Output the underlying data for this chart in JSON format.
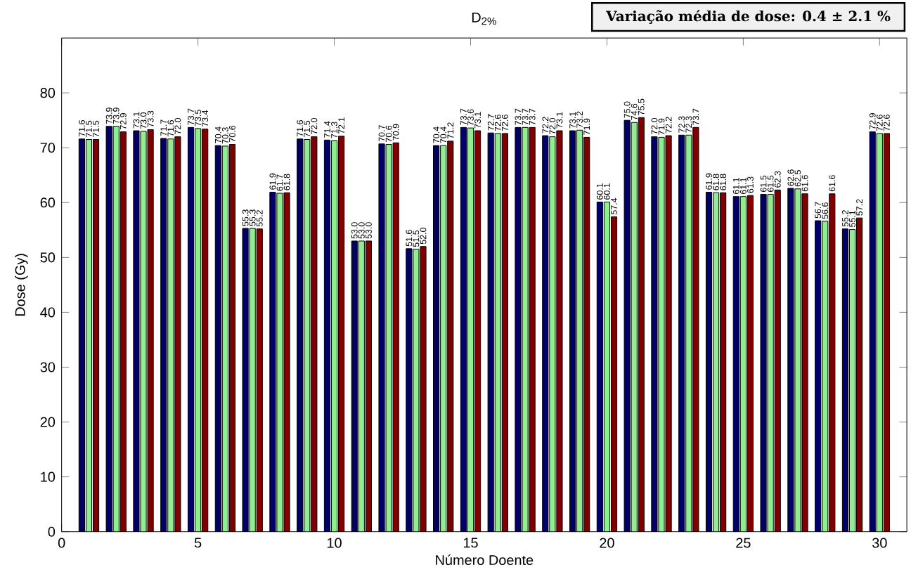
{
  "chart_data": {
    "type": "bar",
    "title": "D$_{2%}$",
    "xlabel": "Número Doente",
    "ylabel": "Dose (Gy)",
    "x": [
      1,
      2,
      3,
      4,
      5,
      6,
      7,
      8,
      9,
      10,
      11,
      12,
      13,
      14,
      15,
      16,
      17,
      18,
      19,
      20,
      21,
      22,
      23,
      24,
      25,
      26,
      27,
      28,
      29,
      30
    ],
    "series": [
      {
        "color": "#000066",
        "values": [
          71.6,
          73.9,
          73.1,
          71.7,
          73.7,
          70.4,
          55.3,
          61.9,
          71.6,
          71.4,
          53.0,
          70.7,
          51.6,
          70.4,
          73.7,
          72.7,
          73.7,
          72.2,
          73.1,
          60.1,
          75.0,
          72.0,
          72.3,
          61.9,
          61.1,
          61.5,
          62.6,
          56.7,
          55.2,
          72.9
        ],
        "value_labels": [
          "71.6",
          "73.9",
          "73.1",
          "71.7",
          "73.7",
          "70.4",
          "55.3",
          "61.9",
          "71.6",
          "71.4",
          "53.0",
          "70.7",
          "51.6",
          "70.4",
          "73.7",
          "72.7",
          "73.7",
          "72.2",
          "73.1",
          "60.1",
          "75.0",
          "72.0",
          "72.3",
          "61.9",
          "61.1",
          "61.5",
          "62.6",
          "56.7",
          "55.2",
          "72.9"
        ]
      },
      {
        "color": "#90ee90",
        "values": [
          71.5,
          73.9,
          73.0,
          71.6,
          73.5,
          70.3,
          55.3,
          61.7,
          71.5,
          71.3,
          53.0,
          70.6,
          51.5,
          70.4,
          73.6,
          72.6,
          73.7,
          72.0,
          73.2,
          60.1,
          74.6,
          71.9,
          72.3,
          61.8,
          61.1,
          61.5,
          62.5,
          56.6,
          55.1,
          72.6
        ],
        "value_labels": [
          "71.5",
          "73.9",
          "73.0",
          "71.6",
          "73.5",
          "70.3",
          "55.3",
          "61.7",
          "71.5",
          "71.3",
          "53.0",
          "70.6",
          "51.5",
          "70.4",
          "73.6",
          "72.6",
          "73.7",
          "72.0",
          "73.2",
          "60.1",
          "74.6",
          "71.9",
          "72.3",
          "61.8",
          "61.1",
          "61.5",
          "62.5",
          "56.6",
          "55.1",
          "72.6"
        ]
      },
      {
        "color": "#800000",
        "values": [
          71.5,
          72.9,
          73.3,
          72.0,
          73.4,
          70.6,
          55.2,
          61.8,
          72.0,
          72.1,
          53.0,
          70.9,
          52.0,
          71.2,
          73.1,
          72.6,
          73.7,
          73.1,
          71.9,
          57.4,
          75.5,
          72.2,
          73.7,
          61.8,
          61.3,
          62.3,
          61.6,
          61.6,
          57.2,
          72.6
        ],
        "value_labels": [
          "71.5",
          "72.9",
          "73.3",
          "72.0",
          "73.4",
          "70.6",
          "55.2",
          "61.8",
          "72.0",
          "72.1",
          "53.0",
          "70.9",
          "52.0",
          "71.2",
          "73.1",
          "72.6",
          "73.7",
          "73.1",
          "71.9",
          "57.4",
          "75.5",
          "72.2",
          "73.7",
          "61.8",
          "61.3",
          "62.3",
          "61.6",
          "61.6",
          "57.2",
          "72.6"
        ]
      }
    ],
    "xlim": [
      0,
      31
    ],
    "ylim": [
      0,
      90
    ],
    "xticks": [
      0,
      5,
      10,
      15,
      20,
      25,
      30
    ],
    "yticks": [
      0,
      10,
      20,
      30,
      40,
      50,
      60,
      70,
      80
    ],
    "annotations": [
      "Variação média de dose: 0.4 ± 2.1 %"
    ]
  }
}
